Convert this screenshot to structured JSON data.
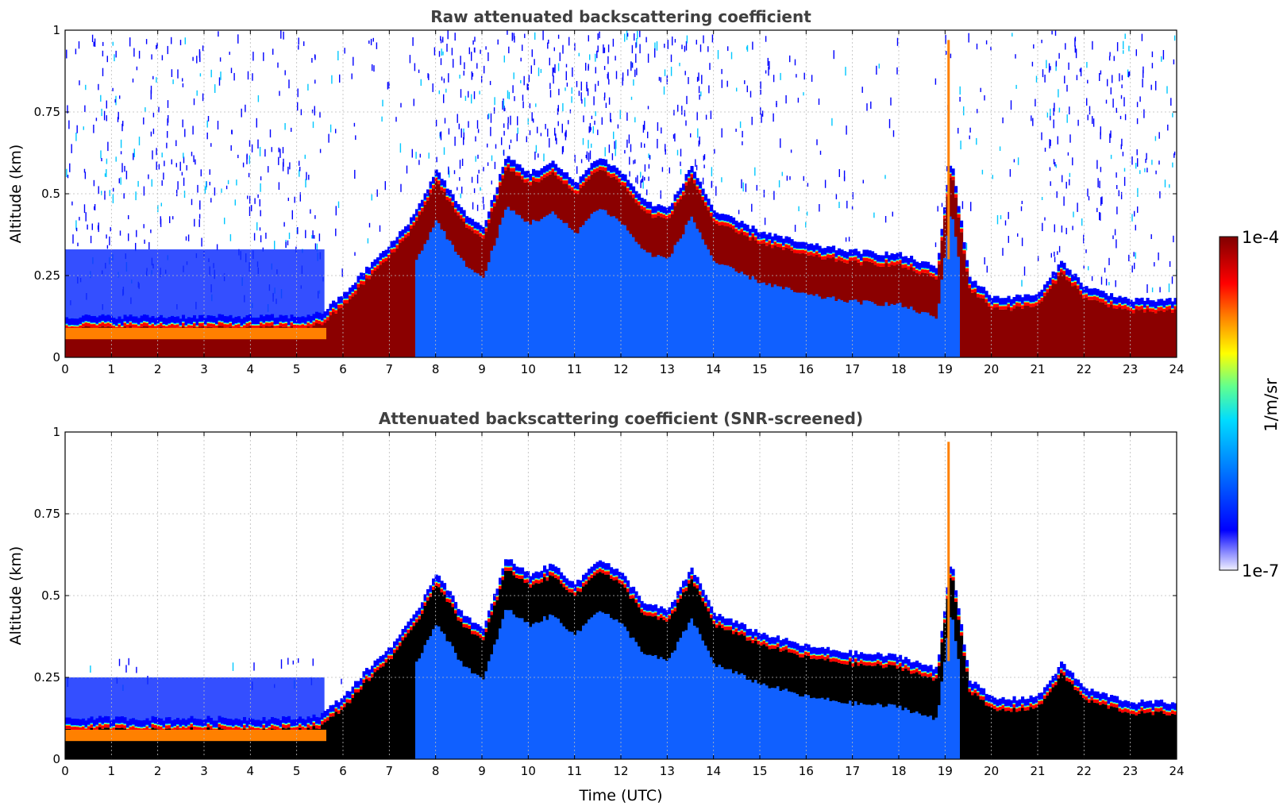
{
  "chart_data": [
    {
      "type": "heatmap",
      "title": "Raw attenuated backscattering coefficient",
      "xlabel": "",
      "ylabel": "Altitude (km)",
      "xlim": [
        0,
        24
      ],
      "ylim": [
        0,
        1
      ],
      "xticks": [
        "0",
        "1",
        "2",
        "3",
        "4",
        "5",
        "6",
        "7",
        "8",
        "9",
        "10",
        "11",
        "12",
        "13",
        "14",
        "15",
        "16",
        "17",
        "18",
        "19",
        "20",
        "21",
        "22",
        "23",
        "24"
      ],
      "yticks": [
        "0",
        "0.25",
        "0.5",
        "0.75",
        "1"
      ],
      "grid": true,
      "layer": {
        "time_h": [
          0,
          1,
          2,
          3,
          4,
          5,
          5.5,
          6,
          6.5,
          7,
          7.5,
          8,
          8.5,
          9,
          9.5,
          10,
          10.5,
          11,
          11.5,
          12,
          12.5,
          13,
          13.5,
          14,
          15,
          16,
          17,
          18,
          18.8,
          19.1,
          19.5,
          20,
          20.5,
          21,
          21.5,
          22,
          22.5,
          23,
          24
        ],
        "top_km": [
          0.11,
          0.11,
          0.11,
          0.11,
          0.11,
          0.11,
          0.12,
          0.18,
          0.26,
          0.33,
          0.42,
          0.56,
          0.44,
          0.38,
          0.6,
          0.55,
          0.58,
          0.52,
          0.6,
          0.55,
          0.46,
          0.44,
          0.57,
          0.43,
          0.37,
          0.33,
          0.31,
          0.3,
          0.26,
          0.6,
          0.23,
          0.17,
          0.17,
          0.18,
          0.28,
          0.2,
          0.18,
          0.16,
          0.16
        ]
      }
    },
    {
      "type": "heatmap",
      "title": "Attenuated backscattering coefficient (SNR-screened)",
      "xlabel": "Time (UTC)",
      "ylabel": "Altitude (km)",
      "xlim": [
        0,
        24
      ],
      "ylim": [
        0,
        1
      ],
      "xticks": [
        "0",
        "1",
        "2",
        "3",
        "4",
        "5",
        "6",
        "7",
        "8",
        "9",
        "10",
        "11",
        "12",
        "13",
        "14",
        "15",
        "16",
        "17",
        "18",
        "19",
        "20",
        "21",
        "22",
        "23",
        "24"
      ],
      "yticks": [
        "0",
        "0.25",
        "0.5",
        "0.75",
        "1"
      ],
      "grid": true,
      "screened": true
    }
  ],
  "colorbar": {
    "label": "1/m/sr",
    "max_label": "1e-4",
    "min_label": "1e-7",
    "scale": "log",
    "colormap": [
      "#f0f0ff",
      "#0000ff",
      "#0078ff",
      "#00e0ff",
      "#60ff90",
      "#ffff00",
      "#ff8000",
      "#ff0000",
      "#800000"
    ]
  }
}
